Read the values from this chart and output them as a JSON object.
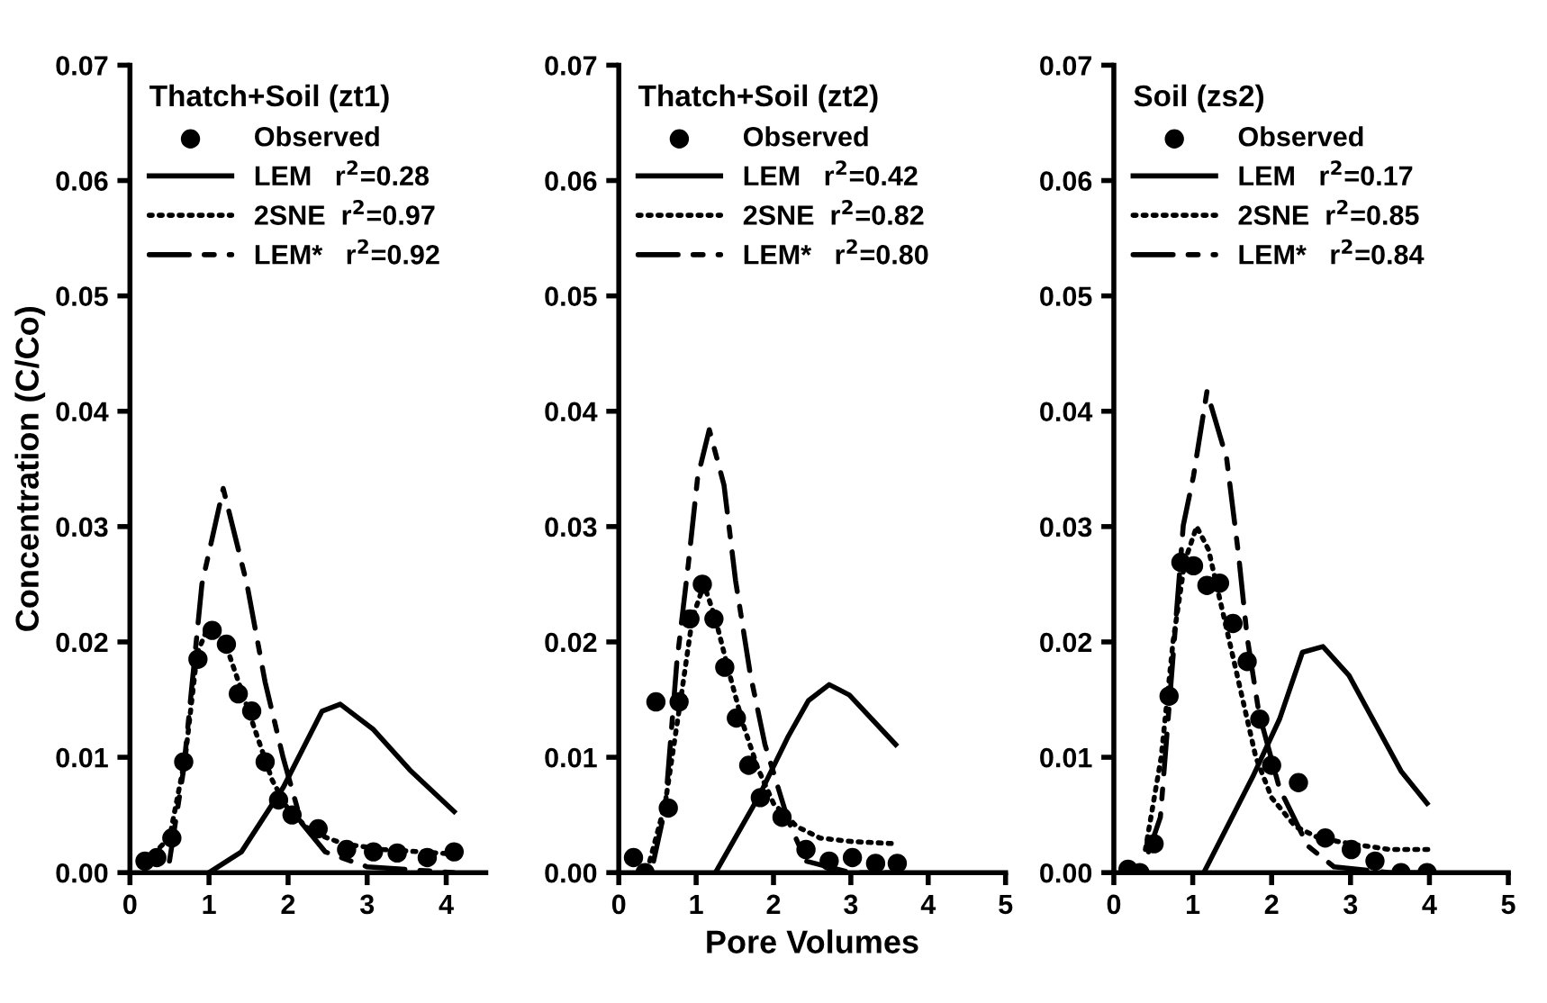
{
  "chart_data": [
    {
      "type": "line",
      "legend_title": "Thatch+Soil (zt1)",
      "ylabel": "Concentration (C/Co)",
      "legend": "top left",
      "xlim": [
        0,
        4.5
      ],
      "xticks": [
        0,
        1,
        2,
        3,
        4
      ],
      "ylim": [
        0,
        0.07
      ],
      "yticks": [
        {
          "value": 0,
          "label": "0.00"
        },
        {
          "value": 0.01,
          "label": "0.01"
        },
        {
          "value": 0.02,
          "label": "0.02"
        },
        {
          "value": 0.03,
          "label": "0.03"
        },
        {
          "value": 0.04,
          "label": "0.04"
        },
        {
          "value": 0.05,
          "label": "0.05"
        },
        {
          "value": 0.06,
          "label": "0.06"
        },
        {
          "value": 0.07,
          "label": "0.07"
        }
      ],
      "series": [
        {
          "name": "Observed",
          "type": "scatter",
          "marker": "circle",
          "color": "#000000",
          "x": [
            0.19,
            0.34,
            0.53,
            0.68,
            0.86,
            1.04,
            1.22,
            1.37,
            1.54,
            1.71,
            1.88,
            2.05,
            2.38,
            2.74,
            3.08,
            3.38,
            3.76,
            4.1
          ],
          "values": [
            0.001,
            0.0013,
            0.003,
            0.0096,
            0.0185,
            0.021,
            0.0198,
            0.0155,
            0.014,
            0.0096,
            0.0063,
            0.005,
            0.0038,
            0.002,
            0.0018,
            0.0017,
            0.0013,
            0.0018
          ]
        },
        {
          "name": "LEM   r$^{2}$=0.28",
          "line_style": "solid",
          "color": "#000000",
          "x": [
            1.0,
            1.41,
            1.94,
            2.43,
            2.66,
            3.08,
            3.54,
            4.1
          ],
          "values": [
            0,
            0.0018,
            0.0074,
            0.014,
            0.0146,
            0.0124,
            0.0089,
            0.0053
          ]
        },
        {
          "name": "2SNE  r$^{2}$=0.97",
          "line_style": "dotted",
          "color": "#000000",
          "x": [
            0.2,
            0.5,
            0.7,
            0.85,
            1.0,
            1.2,
            1.4,
            1.6,
            1.8,
            2.0,
            2.3,
            2.7,
            3.2,
            3.7,
            4.1
          ],
          "values": [
            0.001,
            0.003,
            0.01,
            0.019,
            0.0215,
            0.02,
            0.016,
            0.012,
            0.008,
            0.0055,
            0.0035,
            0.0025,
            0.002,
            0.0018,
            0.0016
          ]
        },
        {
          "name": "LEM*   r$^{2}$=0.92",
          "line_style": "dashdot",
          "color": "#000000",
          "x": [
            0.5,
            0.68,
            0.91,
            1.18,
            1.48,
            1.71,
            1.94,
            2.17,
            2.47,
            3.0,
            4.1
          ],
          "values": [
            0.001,
            0.009,
            0.025,
            0.0333,
            0.025,
            0.0165,
            0.0099,
            0.0043,
            0.0018,
            0.0005,
            0.0
          ]
        }
      ]
    },
    {
      "type": "line",
      "legend_title": "Thatch+Soil (zt2)",
      "xlabel": "Pore Volumes",
      "legend": "top left",
      "xlim": [
        0,
        5
      ],
      "xticks": [
        0,
        1,
        2,
        3,
        4,
        5
      ],
      "ylim": [
        0,
        0.07
      ],
      "yticks": [
        {
          "value": 0,
          "label": "0.00"
        },
        {
          "value": 0.01,
          "label": "0.01"
        },
        {
          "value": 0.02,
          "label": "0.02"
        },
        {
          "value": 0.03,
          "label": "0.03"
        },
        {
          "value": 0.04,
          "label": "0.04"
        },
        {
          "value": 0.05,
          "label": "0.05"
        },
        {
          "value": 0.06,
          "label": "0.06"
        },
        {
          "value": 0.07,
          "label": "0.07"
        }
      ],
      "series": [
        {
          "name": "Observed",
          "type": "scatter",
          "marker": "circle",
          "color": "#000000",
          "x": [
            0.19,
            0.34,
            0.48,
            0.64,
            0.78,
            0.92,
            1.08,
            1.23,
            1.37,
            1.52,
            1.68,
            1.83,
            2.11,
            2.42,
            2.72,
            3.02,
            3.32,
            3.6
          ],
          "values": [
            0.0013,
            0.0,
            0.0148,
            0.0056,
            0.0148,
            0.022,
            0.025,
            0.022,
            0.0178,
            0.0134,
            0.0093,
            0.0065,
            0.0048,
            0.002,
            0.001,
            0.0013,
            0.0008,
            0.0008
          ]
        },
        {
          "name": "LEM   r$^{2}$=0.42",
          "line_style": "solid",
          "color": "#000000",
          "x": [
            1.25,
            1.81,
            2.19,
            2.45,
            2.72,
            2.98,
            3.58
          ],
          "values": [
            0,
            0.0066,
            0.0118,
            0.0149,
            0.0163,
            0.0154,
            0.0111
          ]
        },
        {
          "name": "2SNE  r$^{2}$=0.82",
          "line_style": "dotted",
          "color": "#000000",
          "x": [
            0.4,
            0.6,
            0.8,
            0.95,
            1.1,
            1.25,
            1.4,
            1.6,
            1.8,
            2.0,
            2.3,
            2.6,
            3.0,
            3.6
          ],
          "values": [
            0.001,
            0.006,
            0.015,
            0.022,
            0.025,
            0.022,
            0.018,
            0.013,
            0.009,
            0.006,
            0.004,
            0.003,
            0.0027,
            0.0025
          ]
        },
        {
          "name": "LEM*   r$^{2}$=0.80",
          "line_style": "dashdot",
          "color": "#000000",
          "x": [
            0.45,
            0.6,
            0.75,
            0.9,
            1.02,
            1.17,
            1.36,
            1.51,
            1.7,
            1.89,
            2.19,
            2.42,
            3.0,
            3.6
          ],
          "values": [
            0.001,
            0.0056,
            0.0182,
            0.0268,
            0.0343,
            0.0384,
            0.0336,
            0.0253,
            0.0172,
            0.0111,
            0.0045,
            0.001,
            0.0,
            0.0
          ]
        }
      ]
    },
    {
      "type": "line",
      "legend_title": "Soil (zs2)",
      "legend": "top left",
      "xlim": [
        0,
        5
      ],
      "xticks": [
        0,
        1,
        2,
        3,
        4,
        5
      ],
      "ylim": [
        0,
        0.07
      ],
      "yticks": [
        {
          "value": 0,
          "label": "0.00"
        },
        {
          "value": 0.01,
          "label": "0.01"
        },
        {
          "value": 0.02,
          "label": "0.02"
        },
        {
          "value": 0.03,
          "label": "0.03"
        },
        {
          "value": 0.04,
          "label": "0.04"
        },
        {
          "value": 0.05,
          "label": "0.05"
        },
        {
          "value": 0.06,
          "label": "0.06"
        },
        {
          "value": 0.07,
          "label": "0.07"
        }
      ],
      "series": [
        {
          "name": "Observed",
          "type": "scatter",
          "marker": "circle",
          "color": "#000000",
          "x": [
            0.18,
            0.33,
            0.51,
            0.7,
            0.85,
            1.01,
            1.18,
            1.34,
            1.51,
            1.69,
            1.85,
            2.0,
            2.34,
            2.68,
            3.01,
            3.31,
            3.64,
            3.97
          ],
          "values": [
            0.0003,
            0.0,
            0.0025,
            0.0153,
            0.0269,
            0.0266,
            0.0249,
            0.0251,
            0.0216,
            0.0183,
            0.0133,
            0.0093,
            0.0078,
            0.003,
            0.002,
            0.001,
            0.0,
            0.0
          ]
        },
        {
          "name": "LEM   r$^{2}$=0.17",
          "line_style": "solid",
          "color": "#000000",
          "x": [
            1.14,
            1.76,
            2.1,
            2.39,
            2.65,
            2.98,
            3.64,
            3.97
          ],
          "values": [
            0,
            0.0083,
            0.0133,
            0.0191,
            0.0196,
            0.0171,
            0.0088,
            0.006
          ]
        },
        {
          "name": "2SNE  r$^{2}$=0.85",
          "line_style": "dotted",
          "color": "#000000",
          "x": [
            0.4,
            0.6,
            0.75,
            0.9,
            1.05,
            1.2,
            1.4,
            1.6,
            1.8,
            2.0,
            2.3,
            2.6,
            3.0,
            3.5,
            4.0
          ],
          "values": [
            0.002,
            0.01,
            0.02,
            0.027,
            0.03,
            0.028,
            0.022,
            0.016,
            0.01,
            0.0065,
            0.004,
            0.003,
            0.0025,
            0.002,
            0.002
          ]
        },
        {
          "name": "LEM*   r$^{2}$=0.84",
          "line_style": "dashdot",
          "color": "#000000",
          "x": [
            0.44,
            0.59,
            0.74,
            0.88,
            1.01,
            1.18,
            1.43,
            1.58,
            1.69,
            1.84,
            2.1,
            2.46,
            2.79,
            3.5,
            4.0
          ],
          "values": [
            0.0018,
            0.0048,
            0.0178,
            0.0301,
            0.0344,
            0.0417,
            0.0359,
            0.0276,
            0.0204,
            0.0138,
            0.0073,
            0.0023,
            0.0005,
            0.0,
            0.0
          ]
        }
      ]
    }
  ]
}
